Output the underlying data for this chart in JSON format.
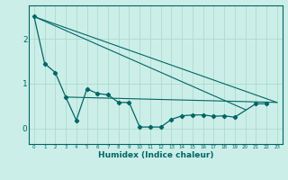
{
  "xlabel": "Humidex (Indice chaleur)",
  "background_color": "#cceee8",
  "grid_color": "#aaddcc",
  "line_color": "#006666",
  "x_data": [
    0,
    1,
    2,
    3,
    4,
    5,
    6,
    7,
    8,
    9,
    10,
    11,
    12,
    13,
    14,
    15,
    16,
    17,
    18,
    19,
    21,
    22
  ],
  "y_main": [
    2.5,
    1.45,
    1.25,
    0.7,
    0.18,
    0.88,
    0.78,
    0.75,
    0.58,
    0.58,
    0.03,
    0.03,
    0.03,
    0.2,
    0.28,
    0.3,
    0.3,
    0.27,
    0.28,
    0.25,
    0.55,
    0.55
  ],
  "trend1_x": [
    0,
    23
  ],
  "trend1_y": [
    2.5,
    0.58
  ],
  "trend2_x": [
    0,
    20
  ],
  "trend2_y": [
    2.5,
    0.42
  ],
  "trend3_x": [
    3,
    23
  ],
  "trend3_y": [
    0.7,
    0.58
  ],
  "yticks": [
    0,
    1,
    2
  ],
  "ylim": [
    -0.35,
    2.75
  ],
  "xlim": [
    -0.5,
    23.5
  ],
  "xtick_labels": [
    "0",
    "1",
    "2",
    "3",
    "4",
    "5",
    "6",
    "7",
    "8",
    "9",
    "10",
    "11",
    "12",
    "13",
    "14",
    "15",
    "16",
    "17",
    "18",
    "19",
    "20",
    "21",
    "22",
    "23"
  ]
}
